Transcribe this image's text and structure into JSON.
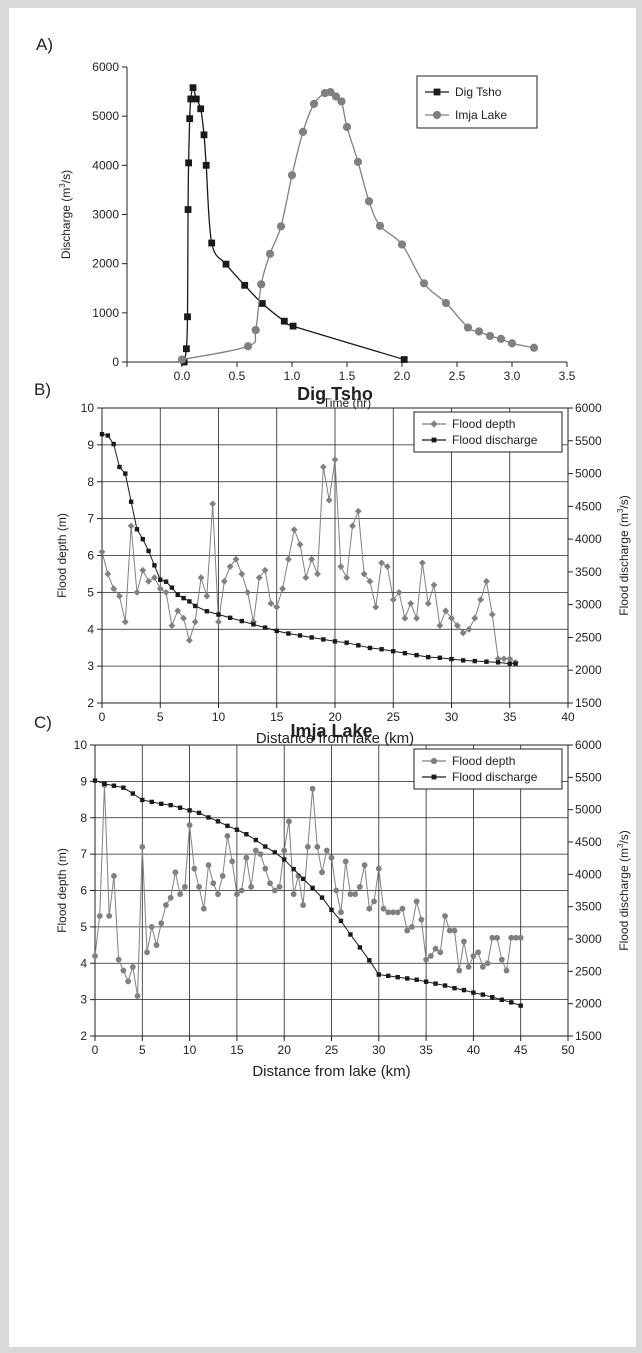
{
  "chart_data": [
    {
      "panel": "A)",
      "type": "line",
      "title": "",
      "xlabel": "Time (hr)",
      "ylabel": "Discharge (m³/s)",
      "xlim": [
        -0.5,
        3.5
      ],
      "ylim": [
        0,
        6000
      ],
      "x_ticks": [
        "0.0",
        "0.5",
        "1.0",
        "1.5",
        "2.0",
        "2.5",
        "3.0",
        "3.5"
      ],
      "y_ticks": [
        "0",
        "1000",
        "2000",
        "3000",
        "4000",
        "5000",
        "6000"
      ],
      "legend_position": "top-right",
      "series": [
        {
          "name": "Dig Tsho",
          "color": "#1a1a1a",
          "marker": "square",
          "x": [
            0.02,
            0.04,
            0.05,
            0.055,
            0.06,
            0.07,
            0.08,
            0.1,
            0.13,
            0.17,
            0.2,
            0.22,
            0.27,
            0.4,
            0.57,
            0.73,
            0.93,
            1.01,
            2.02
          ],
          "y": [
            0,
            270,
            920,
            3100,
            4050,
            4950,
            5350,
            5580,
            5350,
            5150,
            4620,
            4000,
            2420,
            1990,
            1560,
            1190,
            830,
            730,
            50
          ]
        },
        {
          "name": "Imja Lake",
          "color": "#808080",
          "marker": "circle",
          "x": [
            0.0,
            0.6,
            0.67,
            0.72,
            0.8,
            0.9,
            1.0,
            1.1,
            1.2,
            1.3,
            1.35,
            1.4,
            1.45,
            1.5,
            1.6,
            1.7,
            1.8,
            2.0,
            2.2,
            2.4,
            2.6,
            2.7,
            2.8,
            2.9,
            3.0,
            3.2
          ],
          "y": [
            50,
            320,
            650,
            1580,
            2200,
            2760,
            3800,
            4680,
            5250,
            5470,
            5490,
            5400,
            5300,
            4780,
            4070,
            3270,
            2770,
            2390,
            1600,
            1200,
            700,
            620,
            530,
            470,
            380,
            290
          ]
        }
      ]
    },
    {
      "panel": "B)",
      "type": "line",
      "title": "Dig Tsho",
      "xlabel": "Distance from lake (km)",
      "ylabel": "Flood depth (m)",
      "y2label": "Flood discharge (m³/s)",
      "xlim": [
        0,
        40
      ],
      "ylim": [
        2,
        10
      ],
      "y2lim": [
        1500,
        6000
      ],
      "x_ticks": [
        "0",
        "5",
        "10",
        "15",
        "20",
        "25",
        "30",
        "35",
        "40"
      ],
      "y_ticks": [
        "2",
        "3",
        "4",
        "5",
        "6",
        "7",
        "8",
        "9",
        "10"
      ],
      "y2_ticks": [
        "1500",
        "2000",
        "2500",
        "3000",
        "3500",
        "4000",
        "4500",
        "5000",
        "5500",
        "6000"
      ],
      "grid": true,
      "legend_position": "top-right",
      "series": [
        {
          "name": "Flood depth",
          "axis": "left",
          "color": "#808080",
          "marker": "diamond",
          "x": [
            0,
            0.5,
            1,
            1.5,
            2,
            2.5,
            3,
            3.5,
            4,
            4.5,
            5,
            5.5,
            6,
            6.5,
            7,
            7.5,
            8,
            8.5,
            9,
            9.5,
            10,
            10.5,
            11,
            11.5,
            12,
            12.5,
            13,
            13.5,
            14,
            14.5,
            15,
            15.5,
            16,
            16.5,
            17,
            17.5,
            18,
            18.5,
            19,
            19.5,
            20,
            20.5,
            21,
            21.5,
            22,
            22.5,
            23,
            23.5,
            24,
            24.5,
            25,
            25.5,
            26,
            26.5,
            27,
            27.5,
            28,
            28.5,
            29,
            29.5,
            30,
            30.5,
            31,
            31.5,
            32,
            32.5,
            33,
            33.5,
            34,
            34.5,
            35,
            35.5
          ],
          "y": [
            6.1,
            5.5,
            5.1,
            4.9,
            4.2,
            6.8,
            5.0,
            5.6,
            5.3,
            5.4,
            5.1,
            5.0,
            4.1,
            4.5,
            4.3,
            3.7,
            4.2,
            5.4,
            4.9,
            7.4,
            4.2,
            5.3,
            5.7,
            5.9,
            5.5,
            5.0,
            4.2,
            5.4,
            5.6,
            4.7,
            4.6,
            5.1,
            5.9,
            6.7,
            6.3,
            5.4,
            5.9,
            5.5,
            8.4,
            7.5,
            8.6,
            5.7,
            5.4,
            6.8,
            7.2,
            5.5,
            5.3,
            4.6,
            5.8,
            5.7,
            4.8,
            5.0,
            4.3,
            4.7,
            4.3,
            5.8,
            4.7,
            5.2,
            4.1,
            4.5,
            4.3,
            4.1,
            3.9,
            4.0,
            4.3,
            4.8,
            5.3,
            4.4,
            3.2,
            3.2,
            3.2,
            3.1
          ],
          "note": ""
        },
        {
          "name": "Flood discharge",
          "axis": "right",
          "color": "#1a1a1a",
          "marker": "square",
          "x": [
            0,
            0.5,
            1,
            1.5,
            2,
            2.5,
            3,
            3.5,
            4,
            4.5,
            5,
            5.5,
            6,
            6.5,
            7,
            7.5,
            8,
            9,
            10,
            11,
            12,
            13,
            14,
            15,
            16,
            17,
            18,
            19,
            20,
            21,
            22,
            23,
            24,
            25,
            26,
            27,
            28,
            29,
            30,
            31,
            32,
            33,
            34,
            35,
            35.5
          ],
          "y": [
            5600,
            5580,
            5450,
            5100,
            5000,
            4570,
            4150,
            4000,
            3820,
            3600,
            3380,
            3350,
            3260,
            3150,
            3100,
            3050,
            2980,
            2900,
            2850,
            2800,
            2750,
            2700,
            2650,
            2600,
            2560,
            2530,
            2500,
            2470,
            2440,
            2420,
            2380,
            2340,
            2320,
            2290,
            2260,
            2230,
            2200,
            2190,
            2170,
            2150,
            2140,
            2130,
            2120,
            2100,
            2100
          ]
        }
      ]
    },
    {
      "panel": "C)",
      "type": "line",
      "title": "Imja Lake",
      "xlabel": "Distance from lake (km)",
      "ylabel": "Flood depth (m)",
      "y2label": "Flood discharge (m³/s)",
      "xlim": [
        0,
        50
      ],
      "ylim": [
        2,
        10
      ],
      "y2lim": [
        1500,
        6000
      ],
      "x_ticks": [
        "0",
        "5",
        "10",
        "15",
        "20",
        "25",
        "30",
        "35",
        "40",
        "45",
        "50"
      ],
      "y_ticks": [
        "2",
        "3",
        "4",
        "5",
        "6",
        "7",
        "8",
        "9",
        "10"
      ],
      "y2_ticks": [
        "1500",
        "2000",
        "2500",
        "3000",
        "3500",
        "4000",
        "4500",
        "5000",
        "5500",
        "6000"
      ],
      "grid": true,
      "legend_position": "top-right",
      "series": [
        {
          "name": "Flood depth",
          "axis": "left",
          "color": "#808080",
          "marker": "circle",
          "x": [
            0,
            0.5,
            1,
            1.5,
            2,
            2.5,
            3,
            3.5,
            4,
            4.5,
            5,
            5.5,
            6,
            6.5,
            7,
            7.5,
            8,
            8.5,
            9,
            9.5,
            10,
            10.5,
            11,
            11.5,
            12,
            12.5,
            13,
            13.5,
            14,
            14.5,
            15,
            15.5,
            16,
            16.5,
            17,
            17.5,
            18,
            18.5,
            19,
            19.5,
            20,
            20.5,
            21,
            21.5,
            22,
            22.5,
            23,
            23.5,
            24,
            24.5,
            25,
            25.5,
            26,
            26.5,
            27,
            27.5,
            28,
            28.5,
            29,
            29.5,
            30,
            30.5,
            31,
            31.5,
            32,
            32.5,
            33,
            33.5,
            34,
            34.5,
            35,
            35.5,
            36,
            36.5,
            37,
            37.5,
            38,
            38.5,
            39,
            39.5,
            40,
            40.5,
            41,
            41.5,
            42,
            42.5,
            43,
            43.5,
            44,
            44.5,
            45
          ],
          "y": [
            4.2,
            5.3,
            8.9,
            5.3,
            6.4,
            4.1,
            3.8,
            3.5,
            3.9,
            3.1,
            7.2,
            4.3,
            5.0,
            4.5,
            5.1,
            5.6,
            5.8,
            6.5,
            5.9,
            6.1,
            7.8,
            6.6,
            6.1,
            5.5,
            6.7,
            6.2,
            5.9,
            6.4,
            7.5,
            6.8,
            5.9,
            6.0,
            6.9,
            6.1,
            7.1,
            7.0,
            6.6,
            6.2,
            6.0,
            6.1,
            7.1,
            7.9,
            5.9,
            6.4,
            5.6,
            7.2,
            8.8,
            7.2,
            6.5,
            7.1,
            6.9,
            6.0,
            5.4,
            6.8,
            5.9,
            5.9,
            6.1,
            6.7,
            5.5,
            5.7,
            6.6,
            5.5,
            5.4,
            5.4,
            5.4,
            5.5,
            4.9,
            5.0,
            5.7,
            5.2,
            4.1,
            4.2,
            4.4,
            4.3,
            5.3,
            4.9,
            4.9,
            3.8,
            4.6,
            3.9,
            4.2,
            4.3,
            3.9,
            4.0,
            4.7,
            4.7,
            4.1,
            3.8,
            4.7,
            4.7,
            4.7
          ],
          "note": ""
        },
        {
          "name": "Flood discharge",
          "axis": "right",
          "color": "#1a1a1a",
          "marker": "square",
          "x": [
            0,
            1,
            2,
            3,
            4,
            5,
            6,
            7,
            8,
            9,
            10,
            11,
            12,
            13,
            14,
            15,
            16,
            17,
            18,
            19,
            20,
            21,
            22,
            23,
            24,
            25,
            26,
            27,
            28,
            29,
            30,
            31,
            32,
            33,
            34,
            35,
            36,
            37,
            38,
            39,
            40,
            41,
            42,
            43,
            44,
            45
          ],
          "y": [
            5450,
            5400,
            5370,
            5340,
            5250,
            5150,
            5120,
            5090,
            5070,
            5030,
            4990,
            4950,
            4880,
            4820,
            4750,
            4690,
            4620,
            4530,
            4430,
            4340,
            4230,
            4080,
            3930,
            3790,
            3640,
            3450,
            3280,
            3070,
            2870,
            2670,
            2450,
            2430,
            2410,
            2390,
            2370,
            2340,
            2310,
            2280,
            2240,
            2210,
            2170,
            2140,
            2100,
            2060,
            2020,
            1970
          ]
        }
      ]
    }
  ]
}
